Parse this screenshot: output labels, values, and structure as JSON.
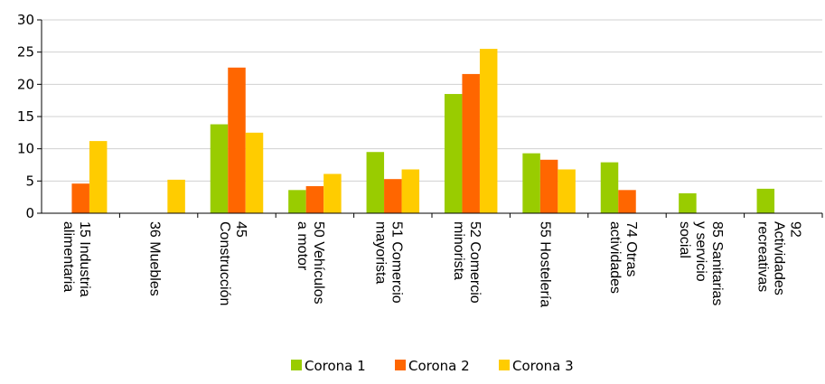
{
  "chart_data": {
    "type": "bar",
    "title": "",
    "xlabel": "",
    "ylabel": "",
    "ylim": [
      0,
      30
    ],
    "yticks": [
      0,
      5,
      10,
      15,
      20,
      25,
      30
    ],
    "grid": true,
    "legend_position": "bottom",
    "categories": [
      [
        "15 Industria",
        "alimentaria"
      ],
      [
        "36 Muebles"
      ],
      [
        "45",
        "Construcción"
      ],
      [
        "50 Vehículos",
        "a motor"
      ],
      [
        "51 Comercio",
        "mayorista"
      ],
      [
        "52 Comercio",
        "minorista"
      ],
      [
        "55 Hostelería"
      ],
      [
        "74 Otras",
        "actividades"
      ],
      [
        "85 Sanitarias",
        "y servicio",
        "social"
      ],
      [
        "92",
        "Actividades",
        "recreativas"
      ]
    ],
    "series": [
      {
        "name": "Corona 1",
        "color": "#99cc00",
        "values": [
          null,
          null,
          13.8,
          3.6,
          9.5,
          18.5,
          9.3,
          7.9,
          3.1,
          3.8
        ]
      },
      {
        "name": "Corona 2",
        "color": "#ff6600",
        "values": [
          4.6,
          null,
          22.6,
          4.2,
          5.3,
          21.6,
          8.3,
          3.6,
          null,
          null
        ]
      },
      {
        "name": "Corona 3",
        "color": "#ffcc00",
        "values": [
          11.2,
          5.2,
          12.5,
          6.1,
          6.8,
          25.5,
          6.8,
          null,
          null,
          null
        ]
      }
    ]
  }
}
